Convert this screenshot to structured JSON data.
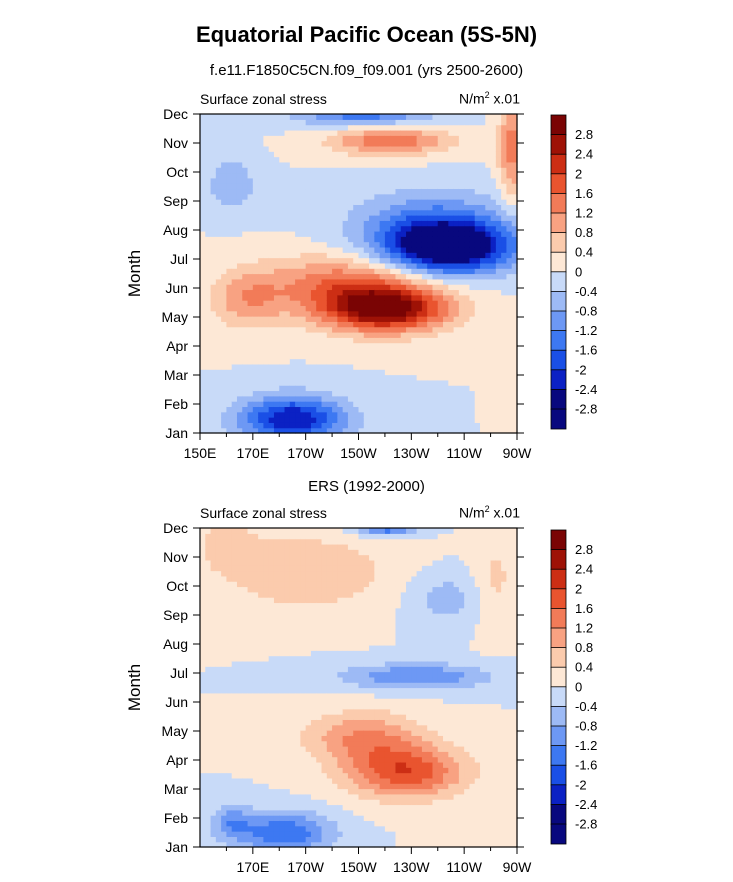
{
  "figure": {
    "title": "Equatorial Pacific Ocean (5S-5N)"
  },
  "chart_data": [
    {
      "type": "heatmap",
      "subtitle": "f.e11.F1850C5CN.f09_f09.001 (yrs 2500-2600)",
      "left_label": "Surface zonal stress",
      "units_label": "N/m",
      "units_power": "2",
      "units_scale": "x.01",
      "ylabel": "Month",
      "xlabel": "",
      "x_ticks": [
        "150E",
        "170E",
        "170W",
        "150W",
        "130W",
        "110W",
        "90W"
      ],
      "x_tick_values": [
        150,
        170,
        190,
        210,
        230,
        250,
        270
      ],
      "xlim": [
        150,
        270
      ],
      "y_ticks": [
        "Jan",
        "Feb",
        "Mar",
        "Apr",
        "May",
        "Jun",
        "Jul",
        "Aug",
        "Sep",
        "Oct",
        "Nov",
        "Dec"
      ],
      "colorbar_levels": [
        "2.8",
        "2.4",
        "2",
        "1.6",
        "1.2",
        "0.8",
        "0.4",
        "0",
        "-0.4",
        "-0.8",
        "-1.2",
        "-1.6",
        "-2",
        "-2.4",
        "-2.8"
      ],
      "features": [
        {
          "lon": 244,
          "month": 6.4,
          "value": -3.0,
          "sx": 24,
          "sy": 0.9
        },
        {
          "lon": 238,
          "month": 7.2,
          "value": -1.2,
          "sx": 30,
          "sy": 1.2
        },
        {
          "lon": 220,
          "month": 4.3,
          "value": 3.0,
          "sx": 24,
          "sy": 0.8
        },
        {
          "lon": 204,
          "month": 5.2,
          "value": 1.4,
          "sx": 30,
          "sy": 1.0
        },
        {
          "lon": 185,
          "month": 0.5,
          "value": -2.4,
          "sx": 20,
          "sy": 0.8
        },
        {
          "lon": 222,
          "month": 10.1,
          "value": 1.6,
          "sx": 22,
          "sy": 0.5
        },
        {
          "lon": 212,
          "month": 11.1,
          "value": -1.6,
          "sx": 25,
          "sy": 0.5
        },
        {
          "lon": 268,
          "month": 9.8,
          "value": 1.4,
          "sx": 5,
          "sy": 1.7
        },
        {
          "lon": 162,
          "month": 8.6,
          "value": -0.8,
          "sx": 9,
          "sy": 0.9
        },
        {
          "lon": 168,
          "month": 4.6,
          "value": 1.0,
          "sx": 14,
          "sy": 1.0
        }
      ]
    },
    {
      "type": "heatmap",
      "subtitle": "ERS (1992-2000)",
      "left_label": "Surface zonal stress",
      "units_label": "N/m",
      "units_power": "2",
      "units_scale": "x.01",
      "ylabel": "Month",
      "xlabel": "",
      "x_ticks": [
        "170E",
        "170W",
        "150W",
        "130W",
        "110W",
        "90W"
      ],
      "x_tick_values": [
        170,
        190,
        210,
        230,
        250,
        270
      ],
      "xlim": [
        150,
        270
      ],
      "y_ticks": [
        "Jan",
        "Feb",
        "Mar",
        "Apr",
        "May",
        "Jun",
        "Jul",
        "Aug",
        "Sep",
        "Oct",
        "Nov",
        "Dec"
      ],
      "colorbar_levels": [
        "2.8",
        "2.4",
        "2",
        "1.6",
        "1.2",
        "0.8",
        "0.4",
        "0",
        "-0.4",
        "-0.8",
        "-1.2",
        "-1.6",
        "-2",
        "-2.4",
        "-2.8"
      ],
      "features": [
        {
          "lon": 228,
          "month": 2.6,
          "value": 1.9,
          "sx": 22,
          "sy": 0.9
        },
        {
          "lon": 212,
          "month": 3.8,
          "value": 1.2,
          "sx": 22,
          "sy": 0.9
        },
        {
          "lon": 232,
          "month": 5.9,
          "value": -1.2,
          "sx": 28,
          "sy": 0.45
        },
        {
          "lon": 182,
          "month": 0.5,
          "value": -1.6,
          "sx": 18,
          "sy": 0.7
        },
        {
          "lon": 162,
          "month": 0.9,
          "value": -0.9,
          "sx": 8,
          "sy": 0.6
        },
        {
          "lon": 220,
          "month": 11.0,
          "value": -1.5,
          "sx": 12,
          "sy": 0.25
        },
        {
          "lon": 190,
          "month": 9.5,
          "value": 0.8,
          "sx": 32,
          "sy": 1.3
        },
        {
          "lon": 243,
          "month": 8.6,
          "value": -0.6,
          "sx": 14,
          "sy": 0.9
        },
        {
          "lon": 262,
          "month": 9.2,
          "value": 0.5,
          "sx": 8,
          "sy": 1.6
        },
        {
          "lon": 160,
          "month": 10.5,
          "value": 0.5,
          "sx": 12,
          "sy": 0.9
        }
      ]
    }
  ]
}
